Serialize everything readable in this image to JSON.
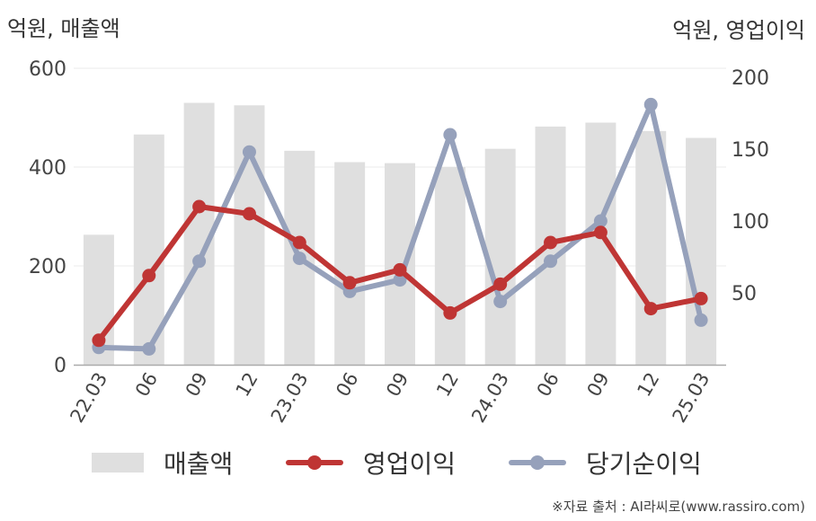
{
  "units": {
    "left": "억원, 매출액",
    "right": "억원, 영업이익"
  },
  "chart_data": {
    "type": "bar+line",
    "categories": [
      "22.03",
      "06",
      "09",
      "12",
      "23.03",
      "06",
      "09",
      "12",
      "24.03",
      "06",
      "09",
      "12",
      "25.03"
    ],
    "left_axis": {
      "ylim": [
        0,
        600
      ],
      "ticks": [
        0,
        200,
        400,
        600
      ]
    },
    "right_axis": {
      "ylim": [
        0,
        200
      ],
      "ticks": [
        50,
        100,
        150,
        200
      ]
    },
    "series": [
      {
        "name": "매출액",
        "type": "bar",
        "axis": "left",
        "color": "#dfdfdf",
        "values": [
          263,
          466,
          530,
          525,
          433,
          410,
          408,
          400,
          437,
          482,
          490,
          473,
          459
        ]
      },
      {
        "name": "영업이익",
        "type": "line",
        "axis": "right",
        "color": "#bf3534",
        "values": [
          17,
          62,
          110,
          105,
          85,
          57,
          66,
          36,
          56,
          85,
          92,
          39,
          46
        ]
      },
      {
        "name": "당기순이익",
        "type": "line",
        "axis": "right",
        "color": "#96a1bb",
        "values": [
          12,
          11,
          72,
          148,
          74,
          51,
          59,
          160,
          44,
          72,
          100,
          181,
          31
        ]
      }
    ],
    "grid": true,
    "legend": "bottom"
  },
  "source": "※자료 출처 : AI라씨로(www.rassiro.com)"
}
